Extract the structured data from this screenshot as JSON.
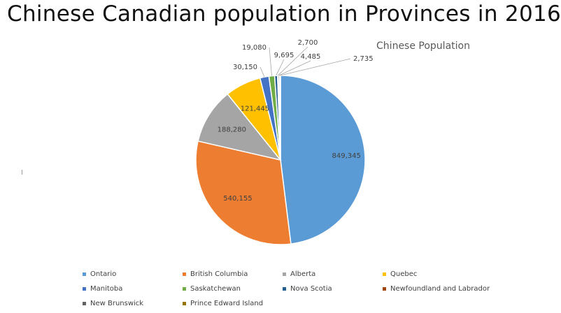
{
  "page": {
    "title": "Chinese Canadian population in Provinces in 2016"
  },
  "chart_data": {
    "type": "pie",
    "title": "Chinese Population",
    "categories": [
      "Ontario",
      "British Columbia",
      "Alberta",
      "Quebec",
      "Manitoba",
      "Saskatchewan",
      "Nova Scotia",
      "Newfoundland and Labrador",
      "New Brunswick",
      "Prince Edward Island"
    ],
    "values": [
      849345,
      540155,
      188280,
      121445,
      30150,
      19080,
      9695,
      2700,
      4485,
      2735
    ],
    "data_labels": [
      "849,345",
      "540,155",
      "188,280",
      "121,445",
      "30,150",
      "19,080",
      "9,695",
      "2,700",
      "4,485",
      "2,735"
    ],
    "colors": [
      "#5b9bd5",
      "#ed7d31",
      "#a5a5a5",
      "#ffc000",
      "#4472c4",
      "#70ad47",
      "#255e91",
      "#9e480e",
      "#636363",
      "#997300"
    ],
    "legend_placement": "bottom",
    "start_angle_deg": 0,
    "direction": "clockwise"
  }
}
